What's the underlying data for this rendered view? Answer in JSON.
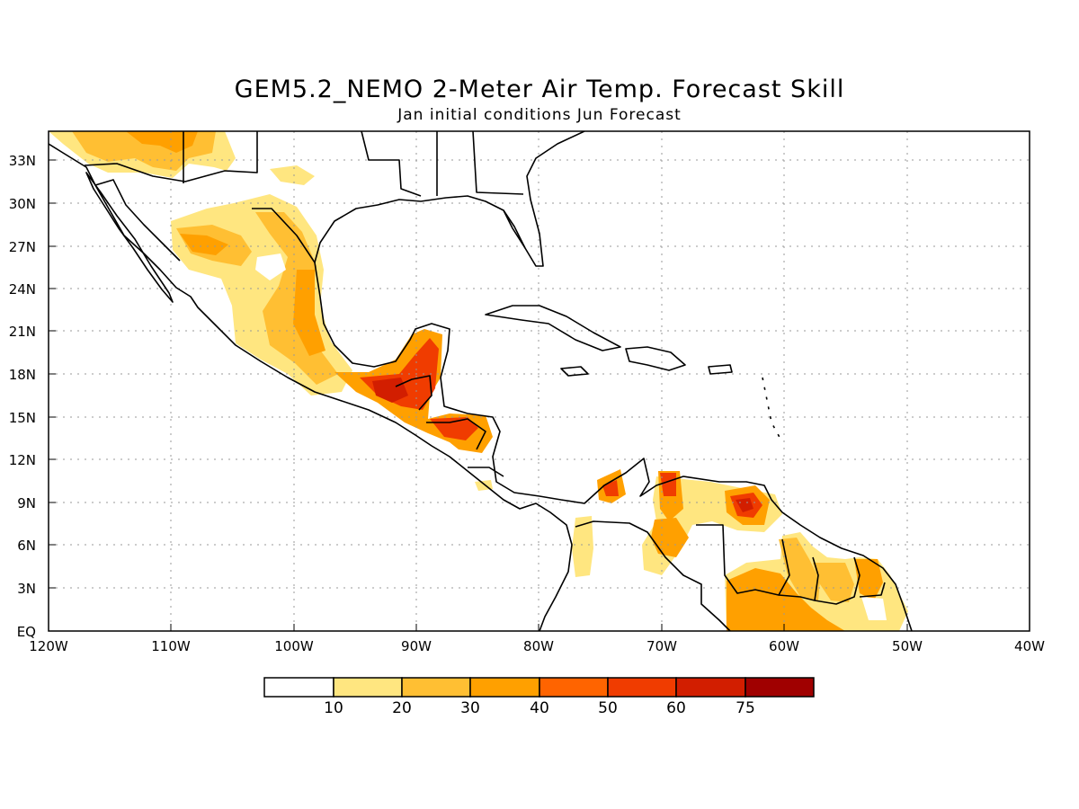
{
  "title": "GEM5.2_NEMO 2-Meter Air Temp. Forecast Skill",
  "subtitle": "Jan initial conditions  Jun Forecast",
  "lat_labels": [
    "33N",
    "30N",
    "27N",
    "24N",
    "21N",
    "18N",
    "15N",
    "12N",
    "9N",
    "6N",
    "3N",
    "EQ"
  ],
  "lon_labels": [
    "120W",
    "110W",
    "100W",
    "90W",
    "80W",
    "70W",
    "60W",
    "50W",
    "40W"
  ],
  "colorbar": {
    "colors": [
      "#ffffff",
      "#ffe680",
      "#ffbf33",
      "#ffa000",
      "#ff6400",
      "#f03c00",
      "#d21e00",
      "#a00000"
    ],
    "labels": [
      "10",
      "20",
      "30",
      "40",
      "50",
      "60",
      "75"
    ]
  },
  "map": {
    "projection": "lat-lon",
    "lon_range": [
      -120,
      -40
    ],
    "lat_range": [
      0,
      35
    ],
    "grid": "dotted"
  }
}
